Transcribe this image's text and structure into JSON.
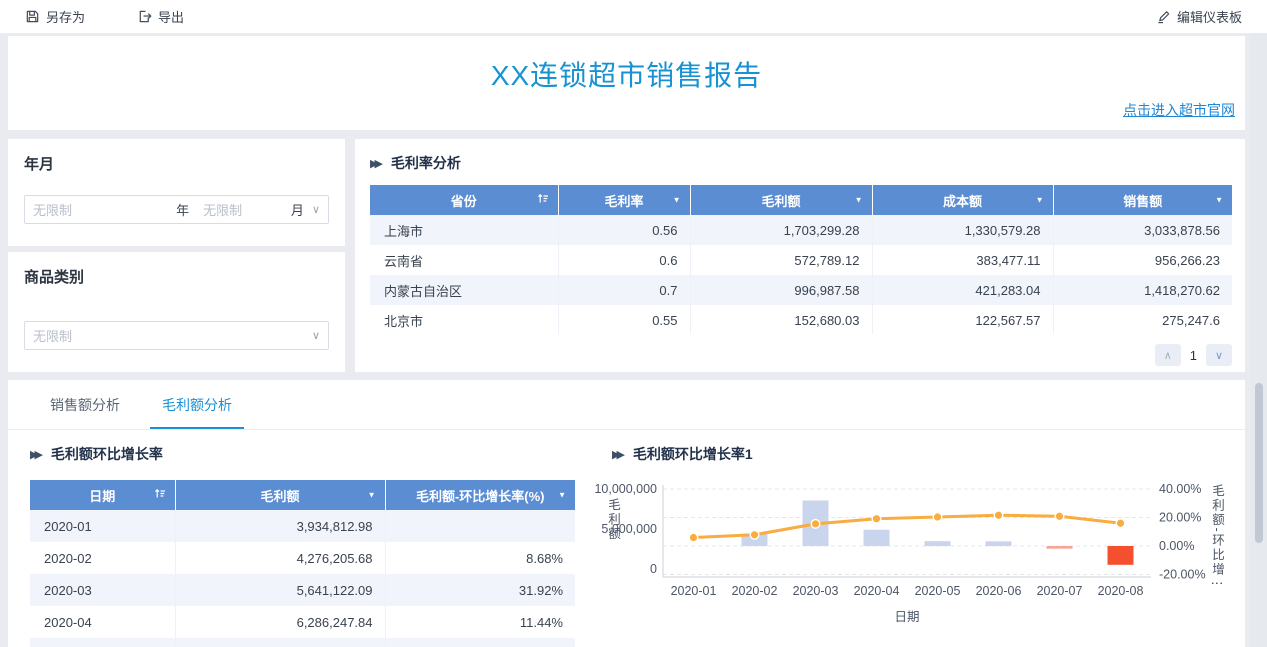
{
  "toolbar": {
    "save_as": "另存为",
    "export": "导出",
    "edit_dashboard": "编辑仪表板"
  },
  "header": {
    "title": "XX连锁超市销售报告",
    "link": "点击进入超市官网"
  },
  "glyphs": {
    "filter": "▼",
    "chevron_down": "∨",
    "chevron_up": "∧",
    "section_arrow": "▶▶",
    "title_blue": "#1793d3",
    "header_blue": "#5b8dd3",
    "active_tab_blue": "#1890d5"
  },
  "filters": {
    "year_month": {
      "label": "年月",
      "year_value": "无限制",
      "year_unit": "年",
      "month_value": "无限制",
      "month_unit": "月"
    },
    "category": {
      "label": "商品类别",
      "value": "无限制"
    }
  },
  "profit_rate_table": {
    "title": "毛利率分析",
    "columns": [
      "省份",
      "毛利率",
      "毛利额",
      "成本额",
      "销售额"
    ],
    "rows": [
      [
        "上海市",
        "0.56",
        "1,703,299.28",
        "1,330,579.28",
        "3,033,878.56"
      ],
      [
        "云南省",
        "0.6",
        "572,789.12",
        "383,477.11",
        "956,266.23"
      ],
      [
        "内蒙古自治区",
        "0.7",
        "996,987.58",
        "421,283.04",
        "1,418,270.62"
      ],
      [
        "北京市",
        "0.55",
        "152,680.03",
        "122,567.57",
        "275,247.6"
      ]
    ],
    "page": "1"
  },
  "tabs": {
    "items": [
      {
        "label": "销售额分析"
      },
      {
        "label": "毛利额分析"
      }
    ]
  },
  "growth_table": {
    "title": "毛利额环比增长率",
    "columns": [
      "日期",
      "毛利额",
      "毛利额-环比增长率(%)"
    ],
    "rows": [
      [
        "2020-01",
        "3,934,812.98",
        ""
      ],
      [
        "2020-02",
        "4,276,205.68",
        "8.68%"
      ],
      [
        "2020-03",
        "5,641,122.09",
        "31.92%"
      ],
      [
        "2020-04",
        "6,286,247.84",
        "11.44%"
      ]
    ]
  },
  "chart_data": {
    "type": "bar",
    "subtype": "combo bar+line, dual axis",
    "title": "毛利额环比增长率1",
    "categories": [
      "2020-01",
      "2020-02",
      "2020-03",
      "2020-04",
      "2020-05",
      "2020-06",
      "2020-07",
      "2020-08"
    ],
    "xlabel": "日期",
    "left_axis": {
      "label": "毛利额",
      "ticks": [
        10000000,
        5000000,
        0
      ],
      "min": 0,
      "max": 10000000
    },
    "right_axis": {
      "label": "毛利额-环比增⋮",
      "ticks": [
        40,
        20,
        0,
        -20
      ],
      "unit": "%"
    },
    "series": [
      {
        "name": "毛利额-环比增长率(%)",
        "type": "bar",
        "axis": "right",
        "values": [
          null,
          8.68,
          31.92,
          11.44,
          3.4,
          3.3,
          -1.9,
          -13.2
        ],
        "colors": [
          null,
          "#c9d5ed",
          "#c9d5ed",
          "#c9d5ed",
          "#c9d5ed",
          "#c9d5ed",
          "#f6a797",
          "#f4502e"
        ]
      },
      {
        "name": "毛利额",
        "type": "line",
        "axis": "left",
        "color": "#f9ac3f",
        "values": [
          3934812.98,
          4276205.68,
          5641122.09,
          6286247.84,
          6500000,
          6720000,
          6590000,
          5720000
        ]
      }
    ],
    "grid": "horizontal dashed",
    "legend": "none"
  }
}
